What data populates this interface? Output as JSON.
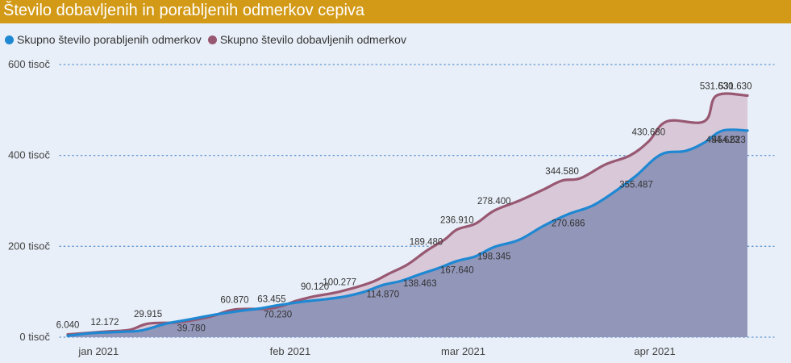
{
  "header": {
    "title": "Število dobavljenih in porabljenih odmerkov cepiva"
  },
  "colors": {
    "header_bg": "#d39a17",
    "background": "#e8eff8",
    "used_line": "#1f88d2",
    "used_fill": "#9296b9",
    "delivered_line": "#985872",
    "delivered_fill": "#d9c8d8",
    "grid": "#3c7dc8"
  },
  "chart_data": {
    "type": "area",
    "title": "Število dobavljenih in porabljenih odmerkov cepiva",
    "xlabel": "",
    "ylabel": "",
    "ylim": [
      0,
      600000
    ],
    "yticks": [
      {
        "value": 0,
        "label": "0 tisoč"
      },
      {
        "value": 200000,
        "label": "200 tisoč"
      },
      {
        "value": 400000,
        "label": "400 tisoč"
      },
      {
        "value": 600000,
        "label": "600 tisoč"
      }
    ],
    "xlim": [
      "2020-12-27",
      "2021-04-19"
    ],
    "xticks": [
      {
        "date": "2021-01-01",
        "label": "jan 2021"
      },
      {
        "date": "2021-02-01",
        "label": "feb 2021"
      },
      {
        "date": "2021-03-01",
        "label": "mar 2021"
      },
      {
        "date": "2021-04-01",
        "label": "apr 2021"
      }
    ],
    "grid": "horizontal dotted",
    "legend_position": "top-left",
    "series": [
      {
        "name": "Skupno število porabljenih odmerkov",
        "points": [
          [
            "2020-12-27",
            3000
          ],
          [
            "2020-12-31",
            9000
          ],
          [
            "2021-01-05",
            12000
          ],
          [
            "2021-01-08",
            15000
          ],
          [
            "2021-01-12",
            30000
          ],
          [
            "2021-01-16",
            39780
          ],
          [
            "2021-01-20",
            50000
          ],
          [
            "2021-01-24",
            58000
          ],
          [
            "2021-01-27",
            63000
          ],
          [
            "2021-01-30",
            70230
          ],
          [
            "2021-02-03",
            78000
          ],
          [
            "2021-02-07",
            84000
          ],
          [
            "2021-02-10",
            90000
          ],
          [
            "2021-02-13",
            100000
          ],
          [
            "2021-02-16",
            114870
          ],
          [
            "2021-02-19",
            124000
          ],
          [
            "2021-02-22",
            138463
          ],
          [
            "2021-02-25",
            152000
          ],
          [
            "2021-02-28",
            167640
          ],
          [
            "2021-03-03",
            178000
          ],
          [
            "2021-03-06",
            198345
          ],
          [
            "2021-03-10",
            214000
          ],
          [
            "2021-03-14",
            245000
          ],
          [
            "2021-03-18",
            270686
          ],
          [
            "2021-03-22",
            290000
          ],
          [
            "2021-03-26",
            325000
          ],
          [
            "2021-03-29",
            355487
          ],
          [
            "2021-04-02",
            402000
          ],
          [
            "2021-04-06",
            410000
          ],
          [
            "2021-04-09",
            428000
          ],
          [
            "2021-04-12",
            454623
          ],
          [
            "2021-04-16",
            454623
          ]
        ],
        "labels": [
          {
            "date": "2021-01-16",
            "value": 39780,
            "text": "39.780"
          },
          {
            "date": "2021-01-30",
            "value": 70230,
            "text": "70.230"
          },
          {
            "date": "2021-02-16",
            "value": 114870,
            "text": "114.870"
          },
          {
            "date": "2021-02-22",
            "value": 138463,
            "text": "138.463"
          },
          {
            "date": "2021-02-28",
            "value": 167640,
            "text": "167.640"
          },
          {
            "date": "2021-03-06",
            "value": 198345,
            "text": "198.345"
          },
          {
            "date": "2021-03-18",
            "value": 270686,
            "text": "270.686"
          },
          {
            "date": "2021-03-29",
            "value": 355487,
            "text": "355.487"
          },
          {
            "date": "2021-04-12",
            "value": 454623,
            "text": "454.623"
          },
          {
            "date": "2021-04-13",
            "value": 454623,
            "text": "454.623"
          }
        ]
      },
      {
        "name": "Skupno število dobavljenih odmerkov",
        "points": [
          [
            "2020-12-27",
            6040
          ],
          [
            "2021-01-02",
            12172
          ],
          [
            "2021-01-06",
            16000
          ],
          [
            "2021-01-09",
            29915
          ],
          [
            "2021-01-14",
            33000
          ],
          [
            "2021-01-19",
            45000
          ],
          [
            "2021-01-23",
            60870
          ],
          [
            "2021-01-29",
            63455
          ],
          [
            "2021-02-02",
            80000
          ],
          [
            "2021-02-05",
            90120
          ],
          [
            "2021-02-09",
            100277
          ],
          [
            "2021-02-14",
            120000
          ],
          [
            "2021-02-17",
            140000
          ],
          [
            "2021-02-20",
            160000
          ],
          [
            "2021-02-23",
            189480
          ],
          [
            "2021-02-26",
            215000
          ],
          [
            "2021-02-28",
            236910
          ],
          [
            "2021-03-03",
            250000
          ],
          [
            "2021-03-06",
            278400
          ],
          [
            "2021-03-10",
            300000
          ],
          [
            "2021-03-14",
            325000
          ],
          [
            "2021-03-17",
            344580
          ],
          [
            "2021-03-20",
            350000
          ],
          [
            "2021-03-24",
            380000
          ],
          [
            "2021-03-28",
            400000
          ],
          [
            "2021-03-31",
            430680
          ],
          [
            "2021-04-03",
            475000
          ],
          [
            "2021-04-09",
            475000
          ],
          [
            "2021-04-11",
            531630
          ],
          [
            "2021-04-16",
            531630
          ]
        ],
        "labels": [
          {
            "date": "2020-12-27",
            "value": 6040,
            "text": "6.040"
          },
          {
            "date": "2021-01-02",
            "value": 12172,
            "text": "12.172"
          },
          {
            "date": "2021-01-09",
            "value": 29915,
            "text": "29.915"
          },
          {
            "date": "2021-01-23",
            "value": 60870,
            "text": "60.870"
          },
          {
            "date": "2021-01-29",
            "value": 63455,
            "text": "63.455"
          },
          {
            "date": "2021-02-05",
            "value": 90120,
            "text": "90.120"
          },
          {
            "date": "2021-02-09",
            "value": 100277,
            "text": "100.277"
          },
          {
            "date": "2021-02-23",
            "value": 189480,
            "text": "189.480"
          },
          {
            "date": "2021-02-28",
            "value": 236910,
            "text": "236.910"
          },
          {
            "date": "2021-03-06",
            "value": 278400,
            "text": "278.400"
          },
          {
            "date": "2021-03-17",
            "value": 344580,
            "text": "344.580"
          },
          {
            "date": "2021-03-31",
            "value": 430680,
            "text": "430.680"
          },
          {
            "date": "2021-04-11",
            "value": 531630,
            "text": "531.630"
          },
          {
            "date": "2021-04-14",
            "value": 531630,
            "text": "531.630"
          }
        ]
      }
    ]
  }
}
